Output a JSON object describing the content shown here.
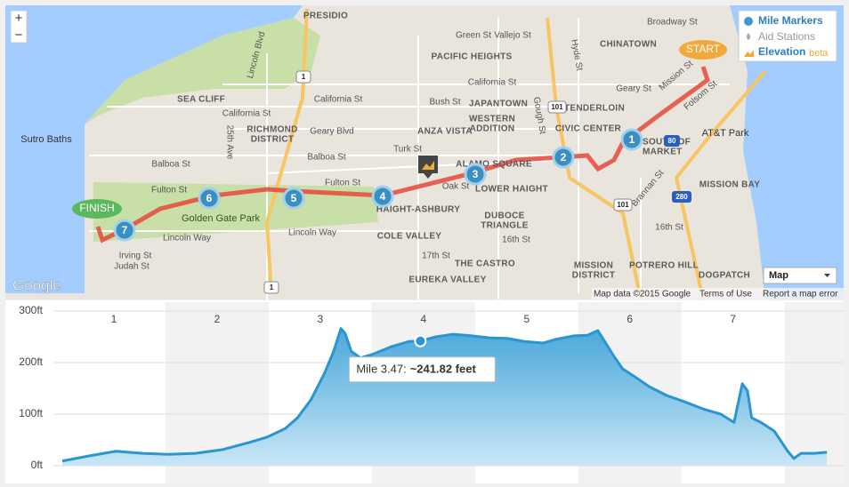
{
  "app": {
    "legend": {
      "mile_markers": "Mile Markers",
      "aid_stations": "Aid Stations",
      "elevation": "Elevation",
      "beta": "beta"
    },
    "zoom_in": "+",
    "zoom_out": "−",
    "map_type": "Map",
    "logo": "Google",
    "attribution": "Map data ©2015 Google",
    "terms": "Terms of Use",
    "report": "Report a map error"
  },
  "map": {
    "start": "START",
    "finish": "FINISH",
    "mile_markers": [
      "1",
      "2",
      "3",
      "4",
      "5",
      "6",
      "7"
    ],
    "road_shields": [
      "1",
      "101",
      "80",
      "280",
      "1",
      "101"
    ],
    "labels": [
      "PRESIDIO",
      "Broadway St",
      "Vallejo St",
      "Green St",
      "CHINATOWN",
      "PACIFIC HEIGHTS",
      "Lincoln Blvd",
      "SEA CLIFF",
      "California St",
      "California St",
      "California St",
      "Bush St",
      "JAPANTOWN",
      "Geary St",
      "TENDERLOIN",
      "Mission St",
      "Folsom St",
      "Sutro Baths",
      "RICHMOND",
      "DISTRICT",
      "Geary Blvd",
      "ANZA VISTA",
      "WESTERN",
      "ADDITION",
      "CIVIC CENTER",
      "AT&T Park",
      "Balboa St",
      "Balboa St",
      "Turk St",
      "ALAMO SQUARE",
      "25th Ave",
      "Fulton St",
      "Fulton St",
      "Oak St",
      "LOWER HAIGHT",
      "Brannan St",
      "MISSION BAY",
      "Golden Gate Park",
      "HAIGHT-ASHBURY",
      "DUBOCE",
      "TRIANGLE",
      "Lincoln Way",
      "Lincoln Way",
      "COLE VALLEY",
      "16th St",
      "16th St",
      "Irving St",
      "Judah St",
      "17th St",
      "THE CASTRO",
      "MISSION",
      "DISTRICT",
      "POTRERO HILL",
      "DOGPATCH",
      "EUREKA VALLEY",
      "Gough St",
      "Hyde St",
      "SOUTH OF",
      "MARKET"
    ]
  },
  "chart_data": {
    "type": "area",
    "color": "#2a96d0",
    "x": [
      0,
      0.26,
      0.52,
      0.78,
      1.03,
      1.29,
      1.55,
      1.81,
      1.98,
      2.16,
      2.28,
      2.41,
      2.54,
      2.63,
      2.7,
      2.74,
      2.8,
      2.89,
      3.02,
      3.19,
      3.36,
      3.47,
      3.62,
      3.79,
      3.97,
      4.14,
      4.31,
      4.48,
      4.66,
      4.78,
      4.96,
      5.09,
      5.19,
      5.26,
      5.34,
      5.43,
      5.56,
      5.69,
      5.86,
      6.03,
      6.21,
      6.38,
      6.51,
      6.59,
      6.64,
      6.68,
      6.77,
      6.9,
      7.03,
      7.09,
      7.16,
      7.29,
      7.41
    ],
    "values": [
      9,
      19,
      28,
      24,
      22,
      24,
      31,
      45,
      55,
      72,
      93,
      128,
      179,
      222,
      266,
      257,
      222,
      209,
      217,
      231,
      241,
      241.82,
      250,
      255,
      252,
      248,
      247,
      241,
      238,
      245,
      252,
      253,
      262,
      240,
      214,
      188,
      171,
      153,
      136,
      124,
      110,
      100,
      84,
      159,
      145,
      93,
      84,
      67,
      28,
      14,
      24,
      24,
      26
    ],
    "xlim": [
      0,
      7.46
    ],
    "ylim": [
      0,
      300
    ],
    "yticks": [
      {
        "value": 0,
        "label": "0ft"
      },
      {
        "value": 100,
        "label": "100ft"
      },
      {
        "value": 200,
        "label": "200ft"
      },
      {
        "value": 300,
        "label": "300ft"
      }
    ],
    "xticks": [
      {
        "value": 0.5,
        "label": "1"
      },
      {
        "value": 1.5,
        "label": "2"
      },
      {
        "value": 2.5,
        "label": "3"
      },
      {
        "value": 3.5,
        "label": "4"
      },
      {
        "value": 4.5,
        "label": "5"
      },
      {
        "value": 5.5,
        "label": "6"
      },
      {
        "value": 6.5,
        "label": "7"
      }
    ],
    "grid": true,
    "tooltip": {
      "label": "Mile 3.47:",
      "value_label": "~241.82 feet",
      "index": 21
    }
  }
}
